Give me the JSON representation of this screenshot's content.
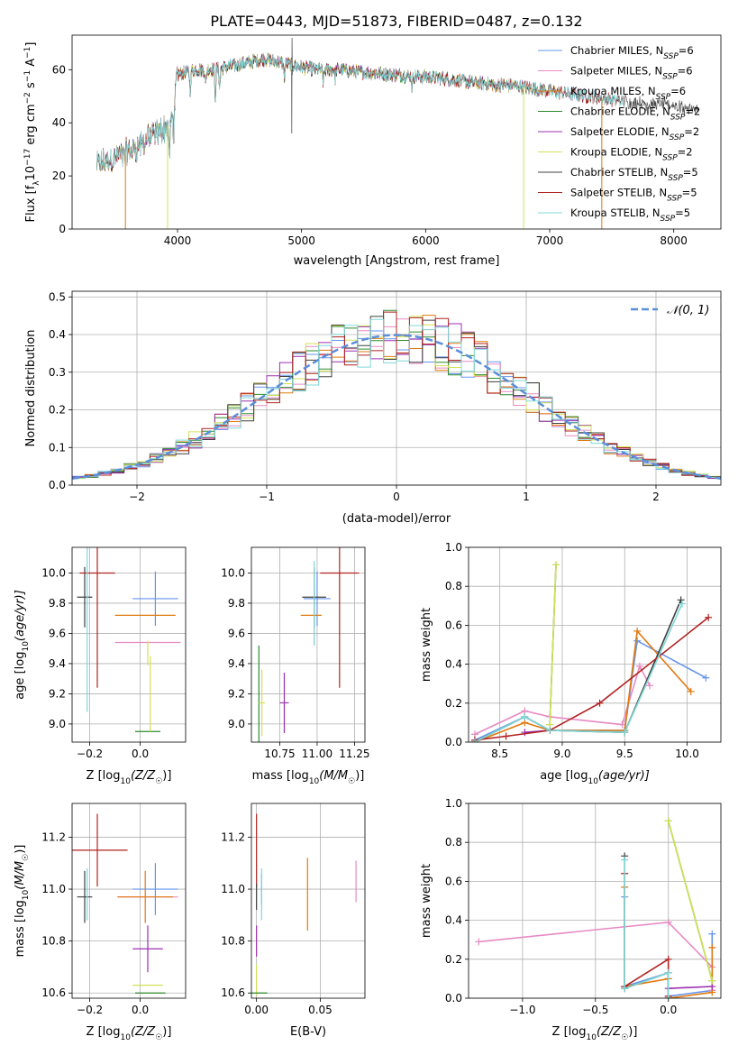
{
  "figure_title": "PLATE=0443, MJD=51873, FIBERID=0487, z=0.132",
  "colors": {
    "chabrier_miles": "#6495ED",
    "salpeter_miles": "#E78AC3",
    "kroupa_miles": "#E07A10",
    "chabrier_elodie": "#2E8B2E",
    "salpeter_elodie": "#9B30B0",
    "kroupa_elodie": "#D4E157",
    "chabrier_stelib": "#404040",
    "salpeter_stelib": "#B22222",
    "kroupa_stelib": "#7FD8D8",
    "normal": "#5B8FD9",
    "grid": "#b0b0b0"
  },
  "legend_entries": [
    {
      "key": "chabrier_miles",
      "label": "Chabrier MILES, N",
      "sub": "SSP",
      "suffix": "=6"
    },
    {
      "key": "salpeter_miles",
      "label": "Salpeter MILES, N",
      "sub": "SSP",
      "suffix": "=6"
    },
    {
      "key": "kroupa_miles",
      "label": "Kroupa MILES, N",
      "sub": "SSP",
      "suffix": "=6"
    },
    {
      "key": "chabrier_elodie",
      "label": "Chabrier ELODIE, N",
      "sub": "SSP",
      "suffix": "=2"
    },
    {
      "key": "salpeter_elodie",
      "label": "Salpeter ELODIE, N",
      "sub": "SSP",
      "suffix": "=2"
    },
    {
      "key": "kroupa_elodie",
      "label": "Kroupa ELODIE, N",
      "sub": "SSP",
      "suffix": "=2"
    },
    {
      "key": "chabrier_stelib",
      "label": "Chabrier STELIB, N",
      "sub": "SSP",
      "suffix": "=5"
    },
    {
      "key": "salpeter_stelib",
      "label": "Salpeter STELIB, N",
      "sub": "SSP",
      "suffix": "=5"
    },
    {
      "key": "kroupa_stelib",
      "label": "Kroupa STELIB, N",
      "sub": "SSP",
      "suffix": "=5"
    }
  ],
  "chart_data": [
    {
      "id": "spectrum",
      "type": "line",
      "xlabel": "wavelength [Angstrom, rest frame]",
      "ylabel_main": "Flux [f",
      "ylabel_sub": "λ",
      "ylabel_rest": "10",
      "ylabel_exp": "−17",
      "ylabel_tail": " erg cm",
      "xlim": [
        3150,
        8380
      ],
      "ylim": [
        0,
        73
      ],
      "xticks": [
        4000,
        5000,
        6000,
        7000,
        8000
      ],
      "yticks": [
        0,
        20,
        40,
        60
      ],
      "grid": false,
      "legend": "top-right",
      "continuum": {
        "x": [
          3350,
          3500,
          3650,
          3800,
          3950,
          4000,
          4150,
          4300,
          4500,
          4700,
          4900,
          5100,
          5300,
          5500,
          5800,
          6100,
          6400,
          6700,
          7000,
          7300,
          7600,
          7900,
          8200
        ],
        "y": [
          24,
          27,
          30,
          35,
          40,
          58,
          60,
          60,
          62,
          64,
          62,
          60,
          60,
          59,
          58,
          57,
          55,
          54,
          52,
          50,
          48,
          47,
          45
        ]
      },
      "drops": [
        {
          "series": "kroupa_miles",
          "x": 3580,
          "y": 0
        },
        {
          "series": "kroupa_elodie",
          "x": 3920,
          "y": 0
        },
        {
          "series": "kroupa_elodie",
          "x": 6790,
          "y": 0
        },
        {
          "series": "kroupa_miles",
          "x": 7420,
          "y": 0
        }
      ]
    },
    {
      "id": "residuals",
      "type": "histogram",
      "xlabel": "(data-model)/error",
      "ylabel": "Normed distribution",
      "xlim": [
        -2.5,
        2.5
      ],
      "ylim": [
        0,
        0.515
      ],
      "xticks": [
        -2,
        -1,
        0,
        1,
        2
      ],
      "yticks": [
        0.0,
        0.1,
        0.2,
        0.3,
        0.4,
        0.5
      ],
      "grid": true,
      "legend": "top-right",
      "normal_label": "𝒩(0, 1)",
      "bin_width": 0.1
    },
    {
      "id": "age_vs_z",
      "type": "errorbar",
      "xlabel": "Z [log",
      "xlabel_sub": "10",
      "xlabel_tail": "(Z/Z",
      "xlabel_sun": "☉",
      "ylabel": "age  [log",
      "ylabel_sub": "10",
      "ylabel_tail": "(age/yr)]",
      "xlim": [
        -0.27,
        0.18
      ],
      "ylim": [
        8.88,
        10.17
      ],
      "xticks": [
        -0.2,
        0.0
      ],
      "yticks": [
        9.0,
        9.2,
        9.4,
        9.6,
        9.8,
        10.0
      ],
      "grid": true,
      "points": [
        {
          "s": "chabrier_miles",
          "x": 0.06,
          "y": 9.83,
          "xe": 0.09,
          "ye": 0.18
        },
        {
          "s": "salpeter_miles",
          "x": 0.03,
          "y": 9.54,
          "xe": 0.13,
          "ye": 0.0
        },
        {
          "s": "kroupa_miles",
          "x": 0.02,
          "y": 9.72,
          "xe": 0.12,
          "ye": 0.0
        },
        {
          "s": "chabrier_elodie",
          "x": 0.03,
          "y": 8.95,
          "xe": 0.05,
          "ye": 0.0
        },
        {
          "s": "kroupa_elodie",
          "x": 0.04,
          "y": 9.2,
          "xe": 0.0,
          "ye": 0.25
        },
        {
          "s": "chabrier_stelib",
          "x": -0.22,
          "y": 9.84,
          "xe": 0.03,
          "ye": 0.2
        },
        {
          "s": "salpeter_stelib",
          "x": -0.17,
          "y": 10.0,
          "xe": 0.07,
          "ye": 0.76
        },
        {
          "s": "kroupa_stelib",
          "x": -0.21,
          "y": 9.8,
          "xe": 0.0,
          "ye": 0.72
        },
        {
          "s": "kroupa_elodie",
          "x": 0.03,
          "y": 9.47,
          "xe": 0.0,
          "ye": 0.08
        }
      ]
    },
    {
      "id": "age_vs_mass",
      "type": "errorbar",
      "xlabel": "mass [log",
      "xlabel_sub": "10",
      "xlabel_tail": "(M/M",
      "xlabel_sun": "☉",
      "xlim": [
        10.56,
        11.32
      ],
      "ylim": [
        8.88,
        10.17
      ],
      "xticks": [
        10.75,
        11.0,
        11.25
      ],
      "yticks": [
        9.0,
        9.2,
        9.4,
        9.6,
        9.8,
        10.0
      ],
      "grid": true,
      "points": [
        {
          "s": "chabrier_miles",
          "x": 11.0,
          "y": 9.83,
          "xe": 0.09,
          "ye": 0.18
        },
        {
          "s": "salpeter_miles",
          "x": 10.98,
          "y": 9.72,
          "xe": 0.0,
          "ye": 0.2
        },
        {
          "s": "kroupa_miles",
          "x": 10.96,
          "y": 9.72,
          "xe": 0.07,
          "ye": 0.0
        },
        {
          "s": "chabrier_elodie",
          "x": 10.61,
          "y": 9.2,
          "xe": 0.0,
          "ye": 0.32
        },
        {
          "s": "salpeter_elodie",
          "x": 10.78,
          "y": 9.14,
          "xe": 0.03,
          "ye": 0.2
        },
        {
          "s": "kroupa_elodie",
          "x": 10.63,
          "y": 9.14,
          "xe": 0.02,
          "ye": 0.22
        },
        {
          "s": "chabrier_stelib",
          "x": 10.98,
          "y": 9.84,
          "xe": 0.08,
          "ye": 0.2
        },
        {
          "s": "salpeter_stelib",
          "x": 11.15,
          "y": 10.0,
          "xe": 0.13,
          "ye": 0.76
        },
        {
          "s": "kroupa_stelib",
          "x": 10.98,
          "y": 9.8,
          "xe": 0.0,
          "ye": 0.28
        }
      ]
    },
    {
      "id": "mass_weight_vs_age",
      "type": "line",
      "xlabel": "age  [log",
      "xlabel_sub": "10",
      "xlabel_tail": "(age/yr)]",
      "ylabel": "mass weight",
      "xlim": [
        8.25,
        10.27
      ],
      "ylim": [
        0,
        1.0
      ],
      "xticks": [
        8.5,
        9.0,
        9.5,
        10.0
      ],
      "yticks": [
        0.0,
        0.2,
        0.4,
        0.6,
        0.8,
        1.0
      ],
      "grid": true,
      "series": [
        {
          "s": "chabrier_miles",
          "x": [
            8.3,
            8.7,
            8.9,
            9.5,
            9.6,
            10.15
          ],
          "y": [
            0.01,
            0.13,
            0.06,
            0.06,
            0.52,
            0.33
          ]
        },
        {
          "s": "salpeter_miles",
          "x": [
            8.3,
            8.7,
            8.9,
            9.48,
            9.62,
            9.7
          ],
          "y": [
            0.04,
            0.16,
            0.13,
            0.09,
            0.39,
            0.29
          ]
        },
        {
          "s": "kroupa_miles",
          "x": [
            8.3,
            8.7,
            8.9,
            9.5,
            9.6,
            10.03
          ],
          "y": [
            0.0,
            0.1,
            0.06,
            0.06,
            0.57,
            0.26
          ]
        },
        {
          "s": "chabrier_elodie",
          "x": [
            8.9,
            8.95
          ],
          "y": [
            0.09,
            0.91
          ]
        },
        {
          "s": "salpeter_elodie",
          "x": [
            8.7,
            8.9
          ],
          "y": [
            0.05,
            0.06
          ]
        },
        {
          "s": "kroupa_elodie",
          "x": [
            8.9,
            8.95
          ],
          "y": [
            0.09,
            0.91
          ]
        },
        {
          "s": "chabrier_stelib",
          "x": [
            8.3,
            8.7,
            8.9,
            9.5,
            9.95
          ],
          "y": [
            0.0,
            0.13,
            0.06,
            0.05,
            0.73
          ]
        },
        {
          "s": "salpeter_stelib",
          "x": [
            8.3,
            8.55,
            8.9,
            9.3,
            10.17
          ],
          "y": [
            0.01,
            0.03,
            0.06,
            0.2,
            0.64
          ]
        },
        {
          "s": "kroupa_stelib",
          "x": [
            8.3,
            8.7,
            8.9,
            9.5,
            9.96
          ],
          "y": [
            0.0,
            0.13,
            0.06,
            0.05,
            0.71
          ]
        }
      ]
    },
    {
      "id": "mass_vs_z",
      "type": "errorbar",
      "xlabel": "Z [log",
      "xlabel_sub": "10",
      "xlabel_tail": "(Z/Z",
      "xlabel_sun": "☉",
      "ylabel": "mass [log",
      "ylabel_sub": "10",
      "ylabel_tail": "(M/M",
      "ylabel_sun": "☉",
      "xlim": [
        -0.27,
        0.18
      ],
      "ylim": [
        10.58,
        11.33
      ],
      "xticks": [
        -0.2,
        0.0
      ],
      "yticks": [
        10.6,
        10.8,
        11.0,
        11.2
      ],
      "grid": true,
      "points": [
        {
          "s": "chabrier_miles",
          "x": 0.06,
          "y": 11.0,
          "xe": 0.09,
          "ye": 0.1
        },
        {
          "s": "salpeter_miles",
          "x": 0.03,
          "y": 10.97,
          "xe": 0.12,
          "ye": 0.0
        },
        {
          "s": "kroupa_miles",
          "x": 0.02,
          "y": 10.97,
          "xe": 0.11,
          "ye": 0.1
        },
        {
          "s": "chabrier_elodie",
          "x": 0.04,
          "y": 10.6,
          "xe": 0.06,
          "ye": 0.0
        },
        {
          "s": "salpeter_elodie",
          "x": 0.03,
          "y": 10.77,
          "xe": 0.06,
          "ye": 0.09
        },
        {
          "s": "kroupa_elodie",
          "x": 0.03,
          "y": 10.63,
          "xe": 0.06,
          "ye": 0.0
        },
        {
          "s": "chabrier_stelib",
          "x": -0.22,
          "y": 10.97,
          "xe": 0.03,
          "ye": 0.1
        },
        {
          "s": "salpeter_stelib",
          "x": -0.17,
          "y": 11.15,
          "xe": 0.12,
          "ye": 0.14
        },
        {
          "s": "kroupa_stelib",
          "x": -0.21,
          "y": 10.98,
          "xe": 0.0,
          "ye": 0.1
        }
      ]
    },
    {
      "id": "mass_vs_ebv",
      "type": "errorbar",
      "xlabel": "E(B-V)",
      "xlim": [
        -0.004,
        0.085
      ],
      "ylim": [
        10.58,
        11.33
      ],
      "xticks": [
        0.0,
        0.05
      ],
      "yticks": [
        10.6,
        10.8,
        11.0,
        11.2
      ],
      "grid": true,
      "points": [
        {
          "s": "chabrier_miles",
          "x": 0.004,
          "y": 11.0,
          "xe": 0.0,
          "ye": 0.06
        },
        {
          "s": "salpeter_miles",
          "x": 0.078,
          "y": 11.03,
          "xe": 0.0,
          "ye": 0.08
        },
        {
          "s": "kroupa_miles",
          "x": 0.04,
          "y": 10.98,
          "xe": 0.0,
          "ye": 0.14
        },
        {
          "s": "salpeter_elodie",
          "x": 0.0,
          "y": 10.8,
          "xe": 0.0,
          "ye": 0.06
        },
        {
          "s": "kroupa_elodie",
          "x": 0.0,
          "y": 10.65,
          "xe": 0.0,
          "ye": 0.06
        },
        {
          "s": "chabrier_elodie",
          "x": 0.0,
          "y": 10.6,
          "xe": 0.0,
          "ye": 0.0
        },
        {
          "s": "salpeter_stelib",
          "x": 0.0,
          "y": 11.15,
          "xe": 0.0,
          "ye": 0.14
        },
        {
          "s": "kroupa_stelib",
          "x": 0.004,
          "y": 10.98,
          "xe": 0.0,
          "ye": 0.1
        },
        {
          "s": "chabrier_stelib",
          "x": 0.0,
          "y": 10.97,
          "xe": 0.0,
          "ye": 0.05
        }
      ]
    },
    {
      "id": "mass_weight_vs_z",
      "type": "line",
      "xlabel": "Z [log",
      "xlabel_sub": "10",
      "xlabel_tail": "(Z/Z",
      "xlabel_sun": "☉",
      "ylabel": "mass weight",
      "xlim": [
        -1.37,
        0.36
      ],
      "ylim": [
        0,
        1.0
      ],
      "xticks": [
        -1.0,
        -0.5,
        0.0
      ],
      "yticks": [
        0.0,
        0.2,
        0.4,
        0.6,
        0.8,
        1.0
      ],
      "grid": true,
      "series": [
        {
          "s": "chabrier_miles",
          "x": [
            -0.3,
            -0.3,
            0.0,
            0.0,
            0.3,
            0.3
          ],
          "y": [
            0.52,
            0.06,
            0.13,
            0.01,
            0.04,
            0.33
          ]
        },
        {
          "s": "salpeter_miles",
          "x": [
            -1.3,
            0.0,
            0.3,
            0.3
          ],
          "y": [
            0.29,
            0.39,
            0.16,
            0.04
          ]
        },
        {
          "s": "kroupa_miles",
          "x": [
            -0.3,
            -0.3,
            0.0,
            0.0,
            0.3,
            0.3
          ],
          "y": [
            0.57,
            0.06,
            0.1,
            0.0,
            0.03,
            0.26
          ]
        },
        {
          "s": "chabrier_elodie",
          "x": [
            0.0,
            0.3
          ],
          "y": [
            0.91,
            0.09
          ]
        },
        {
          "s": "salpeter_elodie",
          "x": [
            0.0,
            0.3
          ],
          "y": [
            0.05,
            0.06
          ]
        },
        {
          "s": "kroupa_elodie",
          "x": [
            0.0,
            0.3
          ],
          "y": [
            0.91,
            0.09
          ]
        },
        {
          "s": "chabrier_stelib",
          "x": [
            -0.3,
            -0.3,
            0.0,
            0.0
          ],
          "y": [
            0.73,
            0.05,
            0.13,
            0.0
          ]
        },
        {
          "s": "salpeter_stelib",
          "x": [
            -0.3,
            -0.3,
            0.0,
            0.0
          ],
          "y": [
            0.64,
            0.06,
            0.2,
            0.01
          ]
        },
        {
          "s": "kroupa_stelib",
          "x": [
            -0.3,
            -0.3,
            0.0,
            0.0
          ],
          "y": [
            0.71,
            0.05,
            0.13,
            0.0
          ]
        }
      ]
    }
  ]
}
